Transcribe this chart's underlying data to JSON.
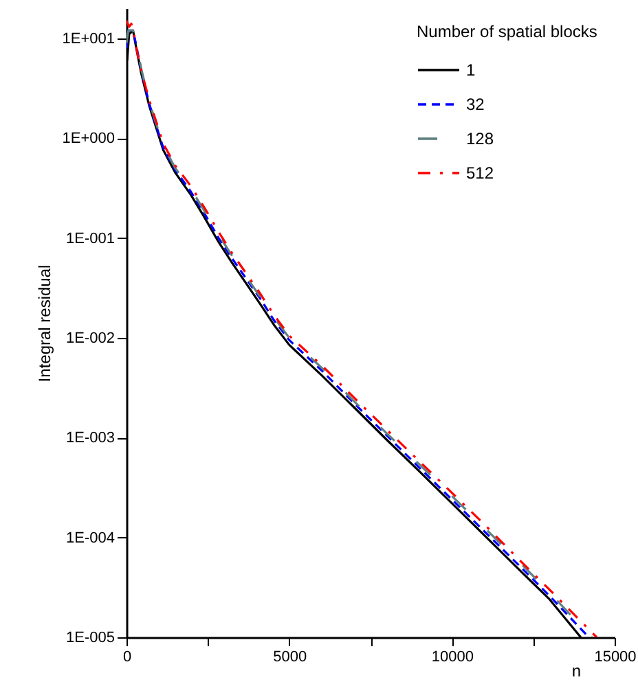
{
  "chart_data": {
    "type": "line",
    "xlabel": "n",
    "ylabel": "Integral residual",
    "legend_title": "Number of spatial blocks",
    "legend": "top right",
    "log": "y",
    "grid": false,
    "xlim": [
      0,
      15000
    ],
    "xticks": [
      0,
      {
        "value": 2500,
        "label": null
      },
      5000,
      {
        "value": 7500,
        "label": null
      },
      10000,
      {
        "value": 12500,
        "label": null
      },
      15000
    ],
    "ylim": [
      1e-05,
      20
    ],
    "yticks": [
      {
        "value": 10,
        "label": "1E+001"
      },
      {
        "value": 1,
        "label": "1E+000"
      },
      {
        "value": 0.1,
        "label": "1E-001"
      },
      {
        "value": 0.01,
        "label": "1E-002"
      },
      {
        "value": 0.001,
        "label": "1E-003"
      },
      {
        "value": 0.0001,
        "label": "1E-004"
      },
      {
        "value": 1e-05,
        "label": "1E-005"
      }
    ],
    "series": [
      {
        "name": "1",
        "color": "#000000",
        "line_style": "solid",
        "x": [
          20,
          80,
          200,
          300,
          450,
          700,
          1130,
          1500,
          1980,
          2400,
          2830,
          3250,
          3680,
          4100,
          4530,
          5000,
          6000,
          7000,
          8000,
          9000,
          10000,
          11000,
          12000,
          13000,
          13960
        ],
        "values": [
          6,
          11,
          12,
          8,
          4.5,
          2.1,
          0.76,
          0.45,
          0.27,
          0.16,
          0.091,
          0.056,
          0.035,
          0.022,
          0.0135,
          0.0085,
          0.0042,
          0.002,
          0.00095,
          0.00046,
          0.00022,
          0.000105,
          5e-05,
          2.4e-05,
          1e-05
        ]
      },
      {
        "name": "32",
        "color": "#0000ff",
        "line_style": "dashed",
        "x": [
          0,
          60,
          200,
          300,
          450,
          700,
          1130,
          1500,
          1980,
          2400,
          2830,
          3250,
          3680,
          4100,
          4530,
          5000,
          6000,
          7000,
          8000,
          9000,
          10000,
          11000,
          12000,
          13000,
          14210
        ],
        "values": [
          8,
          12,
          12,
          8.5,
          4.8,
          2.2,
          0.8,
          0.48,
          0.29,
          0.175,
          0.1,
          0.062,
          0.039,
          0.025,
          0.015,
          0.0095,
          0.0047,
          0.0022,
          0.00105,
          0.0005,
          0.00024,
          0.000115,
          5.5e-05,
          2.6e-05,
          1e-05
        ]
      },
      {
        "name": "128",
        "color": "#5f8080",
        "line_style": "longdash",
        "x": [
          0,
          60,
          200,
          300,
          450,
          700,
          1130,
          1500,
          1980,
          2400,
          2830,
          3250,
          3680,
          4100,
          4530,
          5000,
          6000,
          7000,
          8000,
          9000,
          10000,
          11000,
          12000,
          13000,
          14300
        ],
        "values": [
          9,
          12,
          12,
          9,
          5,
          2.3,
          0.84,
          0.5,
          0.31,
          0.185,
          0.107,
          0.066,
          0.041,
          0.026,
          0.016,
          0.01,
          0.005,
          0.0023,
          0.0011,
          0.00054,
          0.00026,
          0.000125,
          6e-05,
          2.8e-05,
          1e-05
        ]
      },
      {
        "name": "512",
        "color": "#ff0000",
        "line_style": "dashdot",
        "x": [
          0,
          80,
          150,
          250,
          400,
          700,
          1130,
          1500,
          1980,
          2400,
          2830,
          3250,
          3680,
          4100,
          4530,
          5000,
          6000,
          7000,
          8000,
          9000,
          10000,
          11000,
          12000,
          13000,
          14450
        ],
        "values": [
          15,
          13,
          14,
          10,
          5.5,
          2.4,
          0.88,
          0.53,
          0.33,
          0.2,
          0.115,
          0.07,
          0.044,
          0.028,
          0.017,
          0.0105,
          0.0053,
          0.0025,
          0.0012,
          0.00058,
          0.00028,
          0.000135,
          6.3e-05,
          3e-05,
          1e-05
        ]
      }
    ]
  }
}
